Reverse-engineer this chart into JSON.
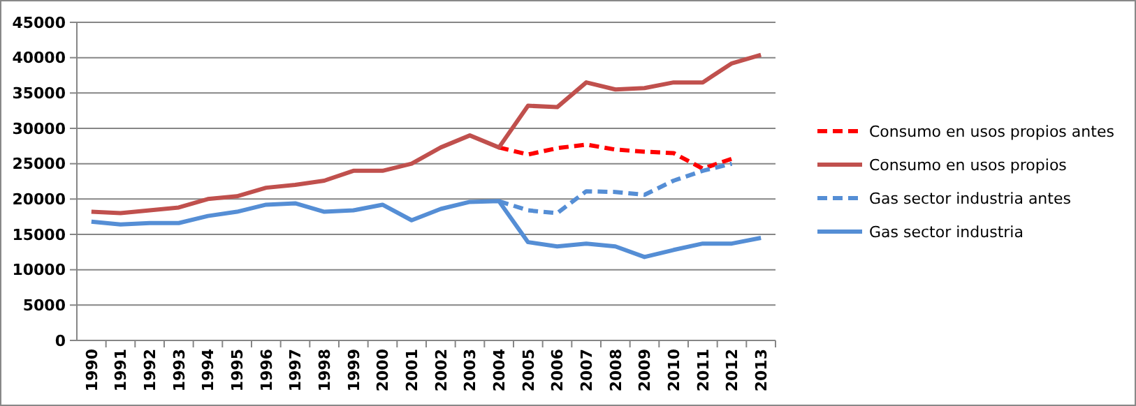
{
  "chart_data": {
    "type": "line",
    "categories": [
      "1990",
      "1991",
      "1992",
      "1993",
      "1994",
      "1995",
      "1996",
      "1997",
      "1998",
      "1999",
      "2000",
      "2001",
      "2002",
      "2003",
      "2004",
      "2005",
      "2006",
      "2007",
      "2008",
      "2009",
      "2010",
      "2011",
      "2012",
      "2013"
    ],
    "ylim": [
      0,
      45000
    ],
    "yticks": [
      0,
      5000,
      10000,
      15000,
      20000,
      25000,
      30000,
      35000,
      40000,
      45000
    ],
    "grid": "y",
    "legend": "right",
    "marker": "none",
    "series": [
      {
        "name": "Consumo en usos propios antes",
        "color": "#ff0000",
        "line_style": "dashed",
        "values": [
          null,
          null,
          null,
          null,
          null,
          null,
          null,
          null,
          null,
          null,
          null,
          null,
          null,
          null,
          27300,
          26300,
          27200,
          27700,
          27000,
          26700,
          26500,
          24300,
          25700,
          null
        ]
      },
      {
        "name": "Consumo en usos propios",
        "color": "#c0504d",
        "line_style": "solid",
        "values": [
          18200,
          18000,
          18400,
          18800,
          20000,
          20400,
          21600,
          22000,
          22600,
          24000,
          24000,
          25000,
          27300,
          29000,
          27300,
          33200,
          33000,
          36500,
          35500,
          35700,
          36500,
          36500,
          39200,
          40400
        ]
      },
      {
        "name": "Gas sector industria antes",
        "color": "#558ed5",
        "line_style": "dashed",
        "values": [
          null,
          null,
          null,
          null,
          null,
          null,
          null,
          null,
          null,
          null,
          null,
          null,
          null,
          null,
          19700,
          18400,
          18000,
          21100,
          21000,
          20600,
          22600,
          24000,
          25000,
          null
        ]
      },
      {
        "name": "Gas sector industria",
        "color": "#558ed5",
        "line_style": "solid",
        "values": [
          16800,
          16400,
          16600,
          16600,
          17600,
          18200,
          19200,
          19400,
          18200,
          18400,
          19200,
          17000,
          18600,
          19600,
          19700,
          13900,
          13300,
          13700,
          13300,
          11800,
          12800,
          13700,
          13700,
          14500
        ]
      }
    ]
  }
}
